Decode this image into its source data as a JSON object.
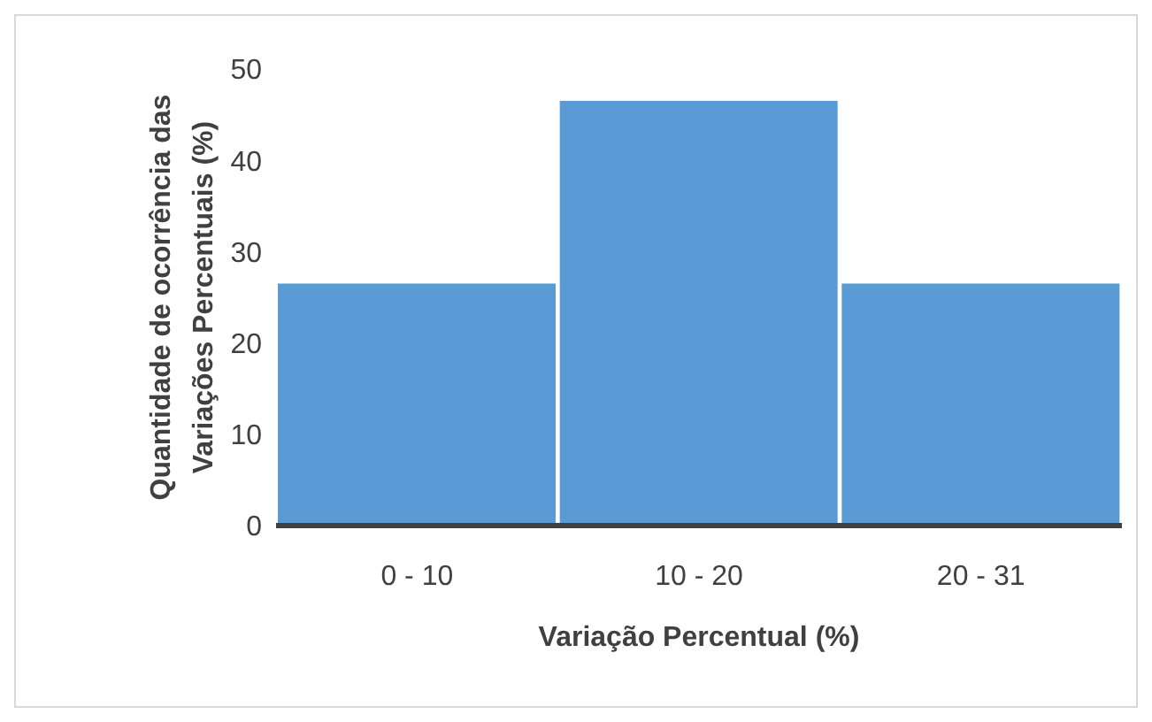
{
  "chart_data": {
    "type": "bar",
    "xlabel": "Variação Percentual (%)",
    "ylabel": "Quantidade de ocorrência  das\nVariações Percentuais (%)",
    "categories": [
      "0 - 10",
      "10 - 20",
      "20 - 31"
    ],
    "values": [
      26.5,
      46.5,
      26.5
    ],
    "color": "#5b9bd5",
    "ylim": [
      0,
      50
    ],
    "yticks": [
      0,
      10,
      20,
      30,
      40,
      50
    ],
    "grid": false,
    "legend": false
  }
}
